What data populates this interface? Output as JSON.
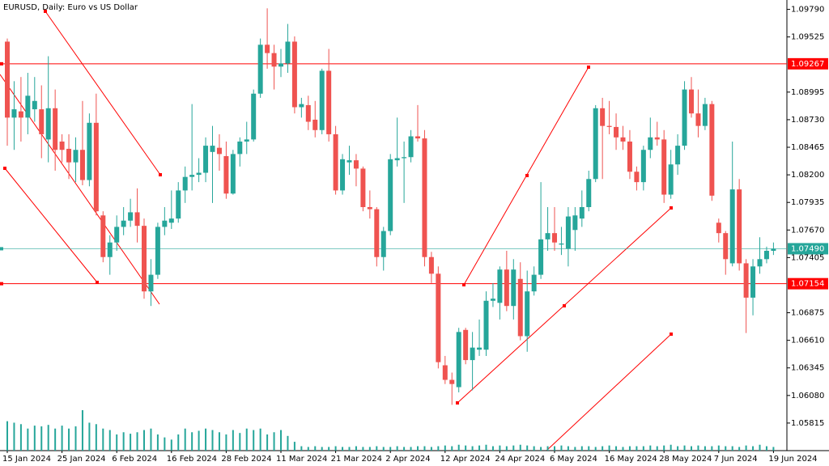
{
  "chart_data": {
    "type": "candlestick",
    "title": "EURUSD, Daily:  Euro vs US Dollar",
    "categories": [
      "15 Jan 2024",
      null,
      null,
      null,
      null,
      null,
      null,
      null,
      "25 Jan 2024",
      null,
      null,
      null,
      null,
      null,
      null,
      null,
      "6 Feb 2024",
      null,
      null,
      null,
      null,
      null,
      null,
      null,
      "16 Feb 2024",
      null,
      null,
      null,
      null,
      null,
      null,
      null,
      "28 Feb 2024",
      null,
      null,
      null,
      null,
      null,
      null,
      null,
      "11 Mar 2024",
      null,
      null,
      null,
      null,
      null,
      null,
      null,
      "21 Mar 2024",
      null,
      null,
      null,
      null,
      null,
      null,
      null,
      "2 Apr 2024",
      null,
      null,
      null,
      null,
      null,
      null,
      null,
      "12 Apr 2024",
      null,
      null,
      null,
      null,
      null,
      null,
      null,
      "24 Apr 2024",
      null,
      null,
      null,
      null,
      null,
      null,
      null,
      "6 May 2024",
      null,
      null,
      null,
      null,
      null,
      null,
      null,
      "16 May 2024",
      null,
      null,
      null,
      null,
      null,
      null,
      null,
      "28 May 2024",
      null,
      null,
      null,
      null,
      null,
      null,
      null,
      "7 Jun 2024",
      null,
      null,
      null,
      null,
      null,
      null,
      null,
      "19 Jun 2024"
    ],
    "open": [
      1.0948,
      1.0875,
      1.0881,
      1.0875,
      1.0883,
      1.0883,
      1.0854,
      1.0884,
      1.0852,
      1.0845,
      1.0832,
      1.0844,
      1.0815,
      1.087,
      1.0781,
      1.0741,
      1.0755,
      1.077,
      1.0776,
      1.0784,
      1.0771,
      1.0708,
      1.0724,
      1.077,
      1.0774,
      1.0778,
      1.0805,
      1.0818,
      1.082,
      1.0822,
      1.0842,
      1.0846,
      1.0838,
      1.0802,
      1.084,
      1.0852,
      1.0854,
      1.0898,
      1.0945,
      1.0937,
      1.0924,
      1.0927,
      1.0948,
      1.0885,
      1.0887,
      1.0873,
      1.0863,
      1.092,
      1.0859,
      1.0805,
      1.0832,
      1.0834,
      1.0826,
      1.0789,
      1.0787,
      1.0741,
      1.0766,
      1.0834,
      1.0836,
      1.0837,
      1.0857,
      1.0855,
      1.0741,
      1.0725,
      1.0637,
      1.0623,
      1.0616,
      1.0671,
      1.0642,
      1.0652,
      1.0652,
      1.0699,
      1.0697,
      1.0729,
      1.0694,
      1.072,
      1.0665,
      1.0708,
      1.0724,
      1.0758,
      1.0764,
      1.0753,
      1.0749,
      1.0767,
      1.0778,
      1.0789,
      1.0816,
      1.0884,
      1.0867,
      1.0866,
      1.0856,
      1.0852,
      1.0823,
      1.0813,
      1.0844,
      1.0856,
      1.0854,
      1.0801,
      1.083,
      1.0848,
      1.0902,
      1.0879,
      1.0867,
      1.0888,
      1.0774,
      1.0764,
      1.0735,
      1.0806,
      1.0735,
      1.0702,
      1.0732,
      1.0739,
      1.0747
    ],
    "high": [
      1.0951,
      1.091,
      1.0914,
      1.0918,
      1.0914,
      1.0906,
      1.0934,
      1.0902,
      1.0859,
      1.0859,
      1.0856,
      1.0891,
      1.0879,
      1.0898,
      1.0785,
      1.0762,
      1.0781,
      1.0789,
      1.0797,
      1.0807,
      1.0778,
      1.0739,
      1.0774,
      1.0789,
      1.0805,
      1.0813,
      1.0828,
      1.0888,
      1.0836,
      1.0856,
      1.0867,
      1.0859,
      1.0852,
      1.0844,
      1.0856,
      1.0871,
      1.0902,
      1.0951,
      1.098,
      1.0945,
      1.0941,
      1.0965,
      1.0953,
      1.0894,
      1.0896,
      1.0891,
      1.0922,
      1.0941,
      1.0867,
      1.084,
      1.0848,
      1.084,
      1.0828,
      1.0805,
      1.0789,
      1.077,
      1.084,
      1.0875,
      1.0852,
      1.0863,
      1.0887,
      1.0863,
      1.0746,
      1.0732,
      1.0646,
      1.063,
      1.0673,
      1.0673,
      1.0669,
      1.0681,
      1.0708,
      1.0716,
      1.0732,
      1.0747,
      1.0739,
      1.0736,
      1.0728,
      1.0732,
      1.0813,
      1.0789,
      1.0789,
      1.077,
      1.0789,
      1.0789,
      1.0805,
      1.0824,
      1.0887,
      1.0894,
      1.0891,
      1.0879,
      1.0867,
      1.0863,
      1.0828,
      1.0848,
      1.0875,
      1.0871,
      1.0863,
      1.0844,
      1.0859,
      1.091,
      1.0914,
      1.0902,
      1.0894,
      1.0891,
      1.0778,
      1.0766,
      1.0852,
      1.0816,
      1.0739,
      1.0739,
      1.076,
      1.0751,
      1.0755
    ],
    "low": [
      1.0848,
      1.0844,
      1.0852,
      1.0859,
      1.0871,
      1.0836,
      1.0832,
      1.0824,
      1.0832,
      1.0816,
      1.0813,
      1.081,
      1.0809,
      1.0781,
      1.0736,
      1.0724,
      1.0747,
      1.0762,
      1.077,
      1.0755,
      1.0701,
      1.0694,
      1.072,
      1.0762,
      1.0768,
      1.0774,
      1.0793,
      1.0805,
      1.0813,
      1.0813,
      1.0793,
      1.0824,
      1.0797,
      1.0801,
      1.0828,
      1.084,
      1.0852,
      1.0894,
      1.0922,
      1.0902,
      1.0914,
      1.0918,
      1.0879,
      1.0875,
      1.0863,
      1.0856,
      1.0859,
      1.0852,
      1.0801,
      1.0801,
      1.082,
      1.0809,
      1.0785,
      1.0778,
      1.0732,
      1.0728,
      1.0762,
      1.0828,
      1.0793,
      1.0832,
      1.0852,
      1.0732,
      1.0716,
      1.0634,
      1.0619,
      1.0599,
      1.0611,
      1.0638,
      1.0613,
      1.0646,
      1.0646,
      1.0693,
      1.0681,
      1.0689,
      1.0681,
      1.0661,
      1.065,
      1.0704,
      1.072,
      1.0747,
      1.0747,
      1.0743,
      1.0732,
      1.0747,
      1.077,
      1.0785,
      1.0813,
      1.0816,
      1.0859,
      1.0844,
      1.0844,
      1.0816,
      1.0805,
      1.0805,
      1.0836,
      1.0848,
      1.0793,
      1.0797,
      1.082,
      1.0844,
      1.0875,
      1.0856,
      1.0863,
      1.0795,
      1.0755,
      1.0724,
      1.0732,
      1.0728,
      1.0668,
      1.0685,
      1.0725,
      1.0735,
      1.0743
    ],
    "close": [
      1.0875,
      1.0883,
      1.0875,
      1.0896,
      1.0891,
      1.0859,
      1.0884,
      1.0844,
      1.0844,
      1.0832,
      1.0844,
      1.0815,
      1.087,
      1.0785,
      1.0741,
      1.0755,
      1.077,
      1.0776,
      1.0784,
      1.0771,
      1.0708,
      1.0724,
      1.077,
      1.0776,
      1.0778,
      1.0805,
      1.0818,
      1.082,
      1.0822,
      1.0848,
      1.0848,
      1.084,
      1.0802,
      1.084,
      1.0852,
      1.0854,
      1.0898,
      1.0945,
      1.0937,
      1.0924,
      1.0927,
      1.0948,
      1.0885,
      1.0888,
      1.0871,
      1.0863,
      1.092,
      1.0859,
      1.0805,
      1.0835,
      1.0834,
      1.0826,
      1.0789,
      1.0787,
      1.0741,
      1.0766,
      1.0835,
      1.0836,
      1.0837,
      1.0857,
      1.0855,
      1.0741,
      1.0725,
      1.064,
      1.0623,
      1.0619,
      1.0669,
      1.0642,
      1.0654,
      1.0654,
      1.0699,
      1.0701,
      1.0729,
      1.0694,
      1.0729,
      1.0665,
      1.0708,
      1.0724,
      1.0758,
      1.0764,
      1.0755,
      1.0754,
      1.078,
      1.0781,
      1.0789,
      1.0816,
      1.0884,
      1.0867,
      1.0866,
      1.0856,
      1.0852,
      1.0823,
      1.0813,
      1.0844,
      1.0856,
      1.0854,
      1.0801,
      1.083,
      1.0848,
      1.0902,
      1.0879,
      1.0867,
      1.0888,
      1.08,
      1.0764,
      1.0739,
      1.0806,
      1.0735,
      1.0702,
      1.0732,
      1.0739,
      1.0747,
      1.0749
    ],
    "volume": [
      40,
      38,
      36,
      30,
      34,
      33,
      35,
      30,
      34,
      30,
      33,
      55,
      38,
      36,
      30,
      28,
      22,
      25,
      23,
      25,
      28,
      30,
      22,
      18,
      15,
      22,
      30,
      25,
      27,
      30,
      28,
      25,
      22,
      28,
      24,
      30,
      28,
      30,
      22,
      25,
      28,
      20,
      12,
      6,
      5,
      6,
      5,
      5,
      6,
      5,
      5,
      6,
      5,
      5,
      6,
      5,
      5,
      6,
      5,
      5,
      6,
      6,
      5,
      6,
      7,
      6,
      8,
      7,
      6,
      7,
      8,
      6,
      7,
      6,
      7,
      8,
      7,
      6,
      5,
      6,
      6,
      7,
      6,
      5,
      6,
      6,
      5,
      6,
      7,
      6,
      5,
      6,
      6,
      6,
      7,
      6,
      7,
      8,
      6,
      7,
      6,
      7,
      6,
      6,
      7,
      6,
      6,
      5,
      7,
      6,
      8,
      6,
      5
    ],
    "up_color": "#26a69a",
    "down_color": "#ef5350",
    "ylim": [
      1.0555,
      1.0988
    ],
    "yticks": [
      {
        "value": 1.0979,
        "label": "1.09790"
      },
      1.09525,
      1.08995,
      {
        "value": 1.0873,
        "label": "1.08730"
      },
      1.08465,
      {
        "value": 1.082,
        "label": "1.08200"
      },
      1.07935,
      {
        "value": 1.0767,
        "label": "1.07670"
      },
      1.07405,
      1.06875,
      {
        "value": 1.0661,
        "label": "1.06610"
      },
      1.06345,
      {
        "value": 1.0608,
        "label": "1.06080"
      },
      1.05815
    ],
    "price_lines": [
      {
        "value": 1.09267,
        "label": "1.09267",
        "color": "#ff0000"
      },
      {
        "value": 1.0749,
        "label": "1.07490",
        "color": "#26a69a"
      },
      {
        "value": 1.07154,
        "label": "1.07154",
        "color": "#ff0000"
      }
    ]
  }
}
